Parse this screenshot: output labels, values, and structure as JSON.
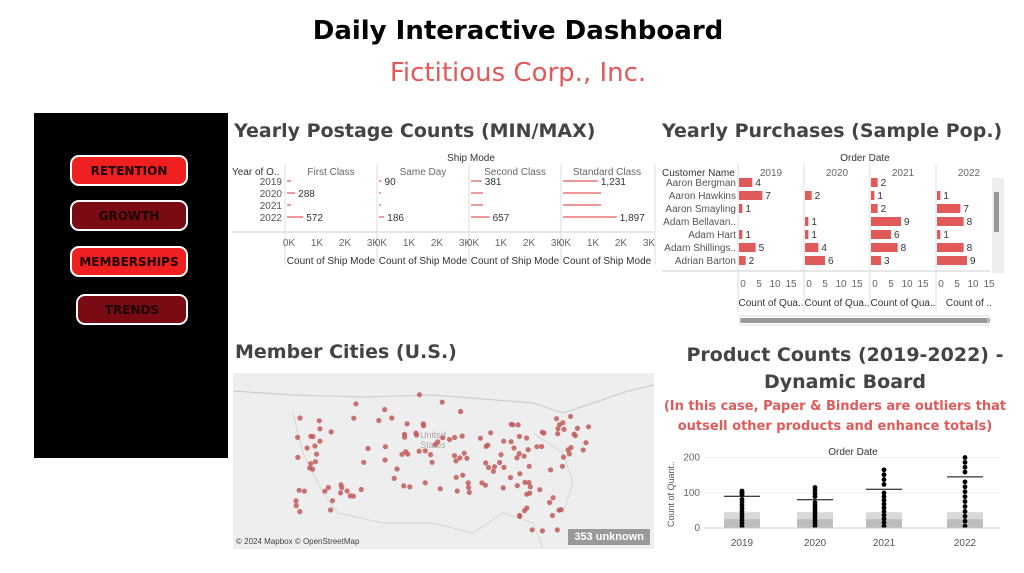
{
  "header": {
    "title": "Daily Interactive Dashboard",
    "subtitle": "Fictitious Corp., Inc."
  },
  "nav": {
    "items": [
      {
        "label": "RETENTION",
        "style": "bright"
      },
      {
        "label": "GROWTH",
        "style": "dark"
      },
      {
        "label": "MEMBERSHIPS",
        "style": "bright"
      },
      {
        "label": "TRENDS",
        "style": "dark"
      }
    ]
  },
  "postage": {
    "title": "Yearly Postage Counts (MIN/MAX)",
    "ship_mode_label": "Ship Mode",
    "row_header": "Year of O..",
    "modes": [
      "First Class",
      "Same Day",
      "Second Class",
      "Standard Class"
    ],
    "years": [
      "2019",
      "2020",
      "2021",
      "2022"
    ],
    "axis_ticks": [
      "0K",
      "1K",
      "2K",
      "3K"
    ],
    "axis_label": "Count of Ship Mode"
  },
  "purchases": {
    "title": "Yearly Purchases (Sample Pop.)",
    "order_date_label": "Order Date",
    "row_header": "Customer Name",
    "years": [
      "2019",
      "2020",
      "2021",
      "2022"
    ],
    "customers": [
      "Aaron Bergman",
      "Aaron Hawkins",
      "Aaron Smayling",
      "Adam Bellavan..",
      "Adam Hart",
      "Adam Shillings..",
      "Adrian Barton"
    ],
    "axis_ticks": [
      "0",
      "5",
      "10",
      "15"
    ],
    "axis_labels": [
      "Count of Qua..",
      "Count of Qua..",
      "Count of Qua..",
      "Count of .."
    ]
  },
  "cities": {
    "title": "Member Cities (U.S.)",
    "map_label": "United States",
    "map_label_line1": "United",
    "map_label_line2": "States",
    "credit": "© 2024 Mapbox © OpenStreetMap",
    "unknown_badge": "353 unknown"
  },
  "products": {
    "title_line1": "Product Counts (2019-2022) -",
    "title_line2": "Dynamic Board",
    "note_line1": "(In this case, Paper & Binders are outliers that",
    "note_line2": "outsell other products and enhance totals)",
    "order_date_label": "Order Date",
    "y_label": "Count of Quant..",
    "y_ticks": [
      "0",
      "100",
      "200"
    ],
    "years": [
      "2019",
      "2020",
      "2021",
      "2022"
    ]
  },
  "chart_data": [
    {
      "type": "bar",
      "title": "Yearly Postage Counts (MIN/MAX)",
      "categories": [
        "2019",
        "2020",
        "2021",
        "2022"
      ],
      "xlim": [
        0,
        3000
      ],
      "series": [
        {
          "name": "First Class",
          "values": [
            null,
            288,
            null,
            572
          ]
        },
        {
          "name": "Same Day",
          "values": [
            90,
            null,
            null,
            186
          ]
        },
        {
          "name": "Second Class",
          "values": [
            381,
            null,
            null,
            657
          ]
        },
        {
          "name": "Standard Class",
          "values": [
            1231,
            null,
            null,
            1897
          ]
        }
      ]
    },
    {
      "type": "bar",
      "title": "Yearly Purchases (Sample Pop.)",
      "categories": [
        "Aaron Bergman",
        "Aaron Hawkins",
        "Aaron Smayling",
        "Adam Bellavan..",
        "Adam Hart",
        "Adam Shillings..",
        "Adrian Barton"
      ],
      "xlim": [
        0,
        15
      ],
      "series": [
        {
          "name": "2019",
          "values": [
            4,
            7,
            1,
            null,
            1,
            5,
            2
          ]
        },
        {
          "name": "2020",
          "values": [
            null,
            2,
            null,
            1,
            1,
            4,
            6
          ]
        },
        {
          "name": "2021",
          "values": [
            2,
            1,
            2,
            9,
            6,
            8,
            3
          ]
        },
        {
          "name": "2022",
          "values": [
            null,
            1,
            7,
            8,
            1,
            8,
            9
          ]
        }
      ]
    },
    {
      "type": "scatter",
      "title": "Product Counts (2019-2022) - Dynamic Board",
      "categories": [
        "2019",
        "2020",
        "2021",
        "2022"
      ],
      "ylim": [
        0,
        210
      ],
      "series": [
        {
          "name": "max",
          "values": [
            90,
            80,
            110,
            145
          ]
        },
        {
          "name": "outlier_top",
          "values": [
            105,
            115,
            165,
            200
          ]
        }
      ]
    }
  ]
}
